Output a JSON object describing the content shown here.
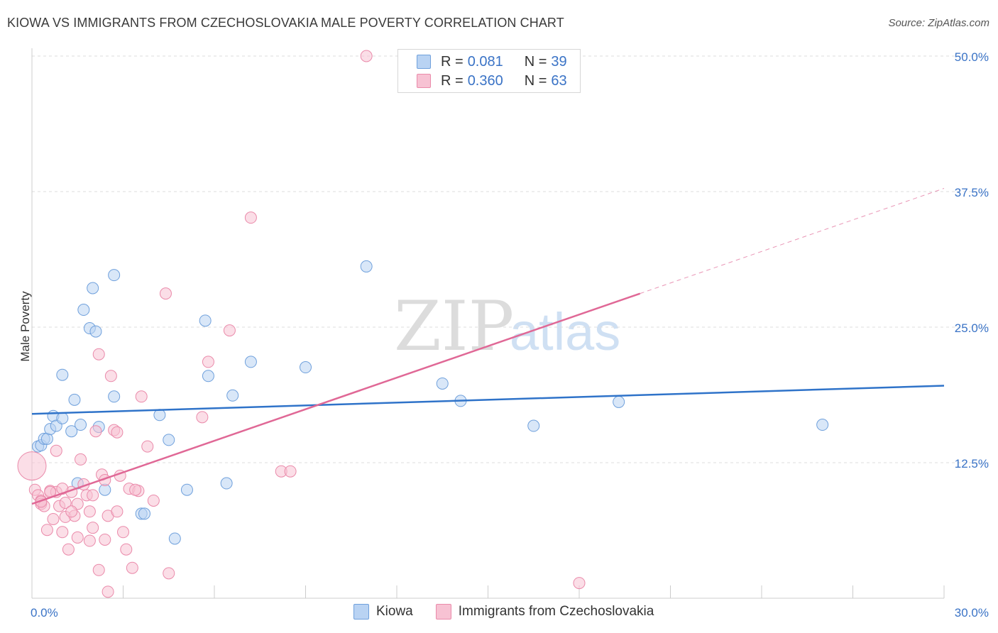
{
  "header": {
    "title": "KIOWA VS IMMIGRANTS FROM CZECHOSLOVAKIA MALE POVERTY CORRELATION CHART",
    "source": "Source: ZipAtlas.com"
  },
  "watermark": {
    "zip": "ZIP",
    "atlas": "atlas"
  },
  "colors": {
    "kiowa_fill": "#b9d3f3",
    "kiowa_stroke": "#6fa0dc",
    "kiowa_line": "#2f73c9",
    "czech_fill": "#f7c2d3",
    "czech_stroke": "#ea8aaa",
    "czech_line": "#e06896",
    "axis_text": "#3a73c6",
    "grid": "#dddddd"
  },
  "legend_top": {
    "rows": [
      {
        "r_label": "R =",
        "r_value": "0.081",
        "n_label": "N =",
        "n_value": "39"
      },
      {
        "r_label": "R =",
        "r_value": "0.360",
        "n_label": "N =",
        "n_value": "63"
      }
    ]
  },
  "legend_bottom": {
    "series1": "Kiowa",
    "series2": "Immigrants from Czechoslovakia"
  },
  "chart_data": {
    "type": "scatter",
    "title": "KIOWA VS IMMIGRANTS FROM CZECHOSLOVAKIA MALE POVERTY CORRELATION CHART",
    "xlabel": "",
    "ylabel": "Male Poverty",
    "xlim": [
      0,
      30
    ],
    "ylim": [
      0,
      50
    ],
    "x_tick_labels": [
      "0.0%",
      "30.0%"
    ],
    "y_ticks": [
      12.5,
      25.0,
      37.5,
      50.0
    ],
    "y_tick_labels": [
      "12.5%",
      "25.0%",
      "37.5%",
      "50.0%"
    ],
    "grid": true,
    "legend_position": "top-center",
    "series": [
      {
        "name": "Kiowa",
        "R": 0.081,
        "N": 39,
        "trend": {
          "x": [
            0,
            30
          ],
          "y": [
            17.0,
            19.6
          ],
          "dashed_from": null
        },
        "points": [
          [
            0.2,
            14.0
          ],
          [
            0.3,
            14.1
          ],
          [
            0.4,
            14.7
          ],
          [
            0.5,
            14.7
          ],
          [
            0.6,
            15.6
          ],
          [
            0.7,
            16.8
          ],
          [
            0.8,
            15.9
          ],
          [
            1.0,
            16.6
          ],
          [
            1.0,
            20.6
          ],
          [
            1.3,
            15.4
          ],
          [
            1.4,
            18.3
          ],
          [
            1.5,
            10.6
          ],
          [
            1.6,
            16.0
          ],
          [
            1.7,
            26.6
          ],
          [
            1.9,
            24.9
          ],
          [
            2.0,
            28.6
          ],
          [
            2.1,
            24.6
          ],
          [
            2.2,
            15.8
          ],
          [
            2.4,
            10.0
          ],
          [
            2.7,
            18.6
          ],
          [
            2.7,
            29.8
          ],
          [
            3.6,
            7.8
          ],
          [
            3.7,
            7.8
          ],
          [
            4.2,
            16.9
          ],
          [
            4.5,
            14.6
          ],
          [
            4.7,
            5.5
          ],
          [
            5.1,
            10.0
          ],
          [
            5.7,
            25.6
          ],
          [
            5.8,
            20.5
          ],
          [
            6.4,
            10.6
          ],
          [
            6.6,
            18.7
          ],
          [
            7.2,
            21.8
          ],
          [
            9.0,
            21.3
          ],
          [
            11.0,
            30.6
          ],
          [
            13.5,
            19.8
          ],
          [
            14.1,
            18.2
          ],
          [
            16.5,
            15.9
          ],
          [
            19.3,
            18.1
          ],
          [
            26.0,
            16.0
          ]
        ]
      },
      {
        "name": "Immigrants from Czechoslovakia",
        "R": 0.36,
        "N": 63,
        "trend": {
          "x": [
            0,
            30
          ],
          "y": [
            8.7,
            37.8
          ],
          "dashed_from": 20
        },
        "points": [
          [
            0.0,
            12.2
          ],
          [
            0.1,
            10.0
          ],
          [
            0.2,
            9.5
          ],
          [
            0.3,
            9.0
          ],
          [
            0.3,
            8.7
          ],
          [
            0.4,
            8.5
          ],
          [
            0.5,
            6.3
          ],
          [
            0.6,
            9.9
          ],
          [
            0.7,
            7.3
          ],
          [
            0.8,
            9.8
          ],
          [
            0.8,
            13.6
          ],
          [
            0.9,
            8.5
          ],
          [
            1.0,
            6.1
          ],
          [
            1.1,
            7.5
          ],
          [
            1.1,
            8.8
          ],
          [
            1.2,
            4.5
          ],
          [
            1.3,
            9.8
          ],
          [
            1.4,
            7.6
          ],
          [
            1.5,
            5.6
          ],
          [
            1.5,
            8.7
          ],
          [
            1.6,
            12.8
          ],
          [
            1.7,
            10.5
          ],
          [
            1.8,
            9.5
          ],
          [
            1.9,
            8.0
          ],
          [
            1.9,
            5.3
          ],
          [
            2.0,
            6.5
          ],
          [
            2.1,
            15.4
          ],
          [
            2.2,
            22.5
          ],
          [
            2.2,
            2.6
          ],
          [
            2.3,
            11.4
          ],
          [
            2.4,
            10.9
          ],
          [
            2.4,
            5.4
          ],
          [
            2.5,
            7.6
          ],
          [
            2.5,
            0.6
          ],
          [
            2.6,
            20.5
          ],
          [
            2.7,
            15.5
          ],
          [
            2.8,
            15.3
          ],
          [
            2.8,
            8.0
          ],
          [
            2.9,
            11.3
          ],
          [
            3.0,
            6.1
          ],
          [
            3.1,
            4.5
          ],
          [
            3.2,
            10.1
          ],
          [
            3.3,
            2.8
          ],
          [
            3.5,
            9.9
          ],
          [
            3.6,
            18.6
          ],
          [
            3.8,
            14.0
          ],
          [
            4.4,
            28.1
          ],
          [
            4.5,
            2.3
          ],
          [
            5.6,
            16.7
          ],
          [
            5.8,
            21.8
          ],
          [
            6.5,
            24.7
          ],
          [
            7.2,
            35.1
          ],
          [
            8.2,
            11.7
          ],
          [
            8.5,
            11.7
          ],
          [
            11.0,
            50.0
          ],
          [
            18.0,
            1.4
          ],
          [
            0.3,
            8.9
          ],
          [
            0.6,
            9.8
          ],
          [
            1.0,
            10.1
          ],
          [
            1.3,
            8.0
          ],
          [
            2.0,
            9.5
          ],
          [
            3.4,
            10.0
          ],
          [
            4.0,
            9.0
          ]
        ]
      }
    ]
  }
}
